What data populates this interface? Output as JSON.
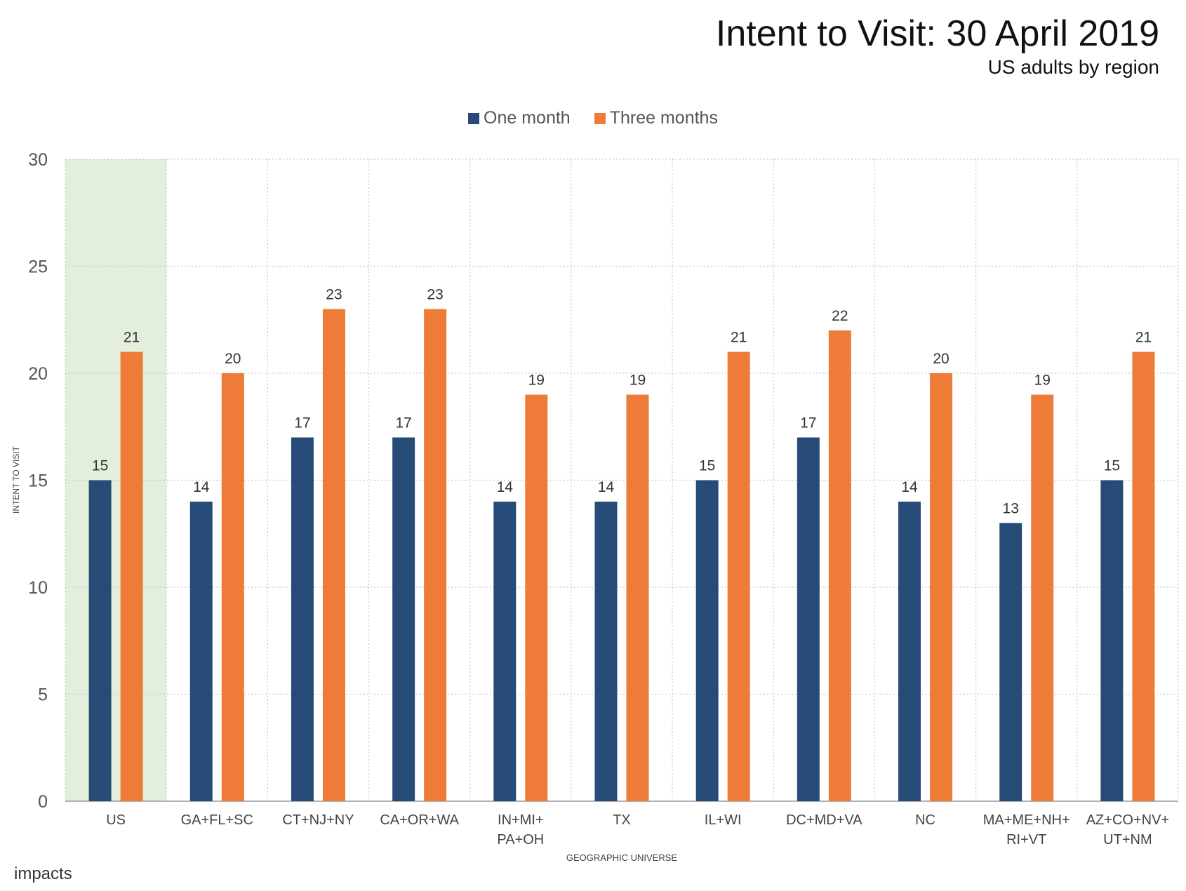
{
  "header": {
    "title": "Intent to Visit: 30 April 2019",
    "subtitle": "US adults by region"
  },
  "legend": {
    "items": [
      {
        "label": "One month",
        "color": "#264b77"
      },
      {
        "label": "Three months",
        "color": "#ee7b37"
      }
    ]
  },
  "branding": {
    "logo": "impacts"
  },
  "colors": {
    "highlight_band": "#e3efda",
    "grid": "#c8c8c8"
  },
  "chart_data": {
    "type": "bar",
    "title": "Intent to Visit: 30 April 2019",
    "subtitle": "US adults by region",
    "xlabel": "GEOGRAPHIC UNIVERSE",
    "ylabel": "INTENT TO VISIT",
    "ylim": [
      0,
      30
    ],
    "yticks": [
      0,
      5,
      10,
      15,
      20,
      25,
      30
    ],
    "grid": true,
    "legend_position": "top-center",
    "highlighted_category": "US",
    "categories": [
      [
        "US"
      ],
      [
        "GA+FL+SC"
      ],
      [
        "CT+NJ+NY"
      ],
      [
        "CA+OR+WA"
      ],
      [
        "IN+MI+",
        "PA+OH"
      ],
      [
        "TX"
      ],
      [
        "IL+WI"
      ],
      [
        "DC+MD+VA"
      ],
      [
        "NC"
      ],
      [
        "MA+ME+NH+",
        "RI+VT"
      ],
      [
        "AZ+CO+NV+",
        "UT+NM"
      ]
    ],
    "series": [
      {
        "name": "One month",
        "color": "#264b77",
        "values": [
          15,
          14,
          17,
          17,
          14,
          14,
          15,
          17,
          14,
          13,
          15
        ]
      },
      {
        "name": "Three months",
        "color": "#ee7b37",
        "values": [
          21,
          20,
          23,
          23,
          19,
          19,
          21,
          22,
          20,
          19,
          21
        ]
      }
    ]
  }
}
